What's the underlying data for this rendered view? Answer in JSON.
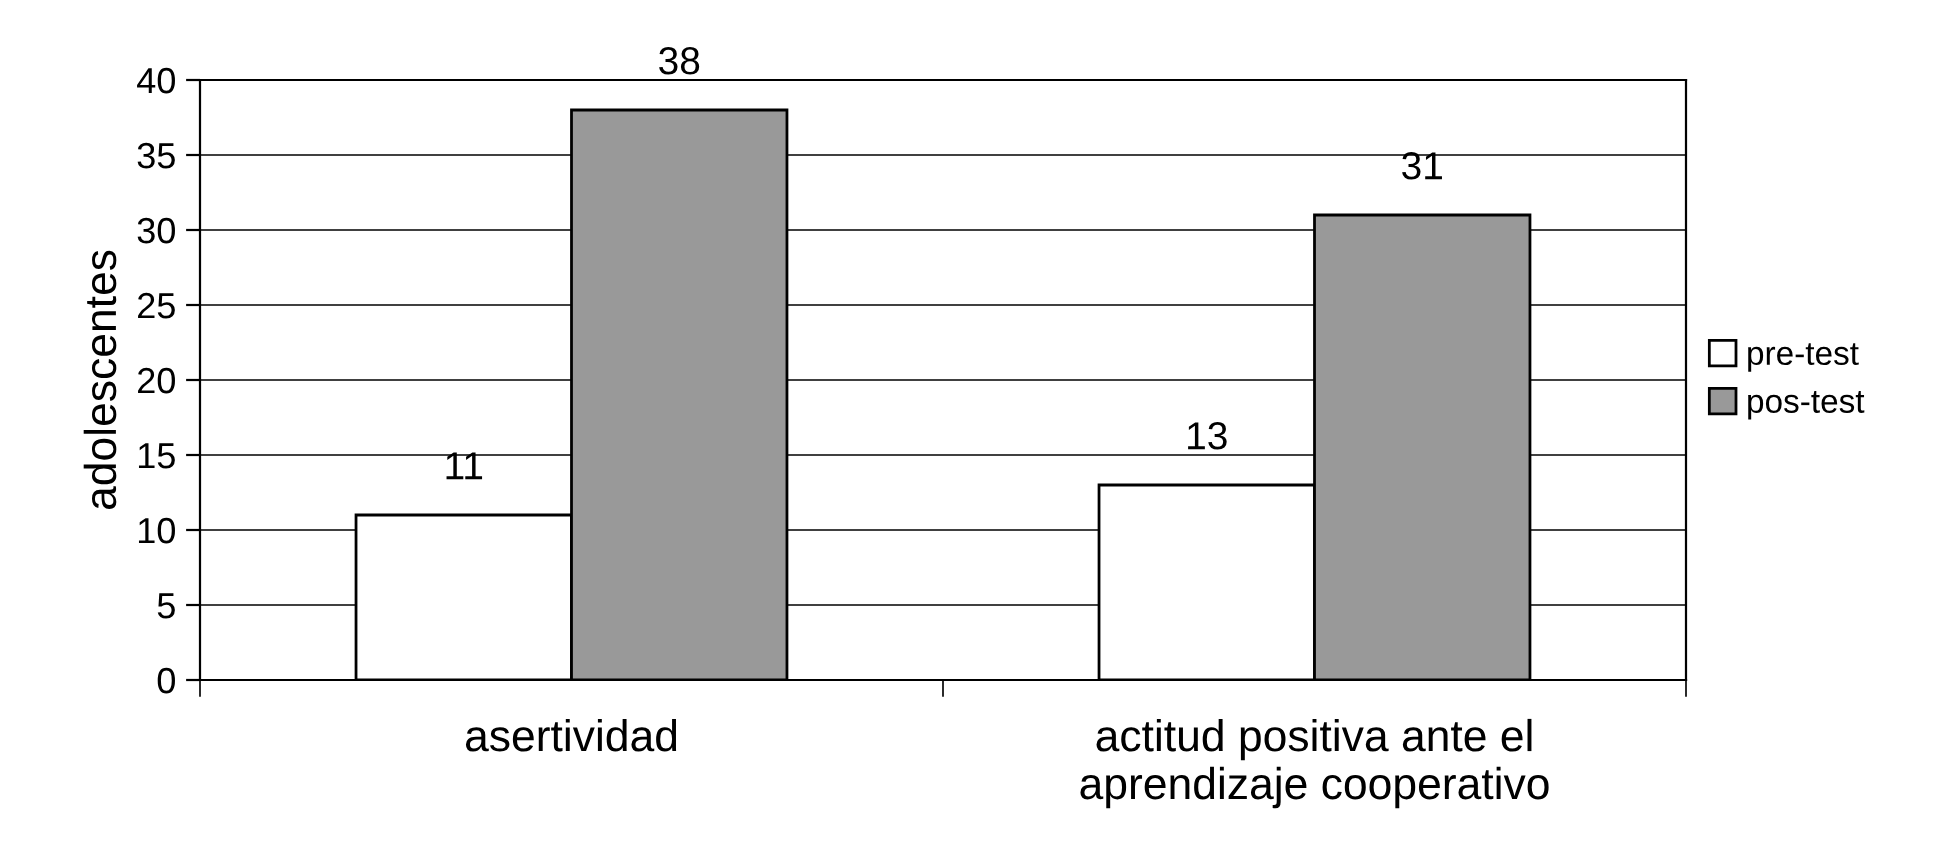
{
  "chart_data": {
    "type": "bar",
    "ylabel": "adolescentes",
    "categories": [
      "asertividad",
      "actitud positiva ante el\naprendizaje cooperativo"
    ],
    "series": [
      {
        "name": "pre-test",
        "color": "#ffffff",
        "values": [
          11,
          13
        ]
      },
      {
        "name": "pos-test",
        "color": "#999999",
        "values": [
          38,
          31
        ]
      }
    ],
    "ylim": [
      0,
      40
    ],
    "yticks": [
      0,
      5,
      10,
      15,
      20,
      25,
      30,
      35,
      40
    ],
    "grid": "y",
    "legend": "right",
    "data_labels": true
  }
}
